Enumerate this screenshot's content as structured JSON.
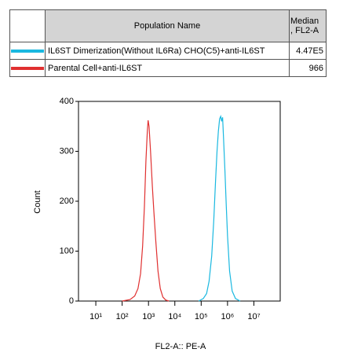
{
  "chart_data": {
    "type": "line",
    "legend_header": [
      "Population Name",
      "Median\n, FL2-A"
    ],
    "xlabel": "FL2-A:: PE-A",
    "ylabel": "Count",
    "xscale": "log",
    "xlim": [
      2.2,
      100000000
    ],
    "ylim": [
      0,
      400
    ],
    "xticks": [
      {
        "value": 10,
        "label": "10¹"
      },
      {
        "value": 100,
        "label": "10²"
      },
      {
        "value": 1000,
        "label": "10³"
      },
      {
        "value": 10000,
        "label": "10⁴"
      },
      {
        "value": 100000,
        "label": "10⁵"
      },
      {
        "value": 1000000,
        "label": "10⁶"
      },
      {
        "value": 10000000,
        "label": "10⁷"
      }
    ],
    "yticks": [
      0,
      100,
      200,
      300,
      400
    ],
    "series": [
      {
        "name": "IL6ST Dimerization(Without IL6Ra) CHO(C5)+anti-IL6ST",
        "color": "#1ab8e0",
        "median": 447000,
        "median_label": "4.47E5",
        "x": [
          80000,
          120000,
          160000,
          200000,
          250000,
          300000,
          350000,
          400000,
          450000,
          500000,
          550000,
          600000,
          650000,
          700000,
          800000,
          900000,
          1000000,
          1200000,
          1500000,
          2000000,
          3000000
        ],
        "values": [
          0,
          5,
          15,
          40,
          90,
          160,
          240,
          300,
          340,
          365,
          370,
          360,
          368,
          330,
          260,
          190,
          130,
          60,
          20,
          5,
          0
        ]
      },
      {
        "name": "Parental Cell+anti-IL6ST",
        "color": "#e03030",
        "median": 966,
        "median_label": "966",
        "x": [
          100,
          200,
          300,
          400,
          500,
          600,
          700,
          800,
          900,
          966,
          1050,
          1200,
          1400,
          1600,
          1900,
          2300,
          2800,
          3500,
          4500,
          6000
        ],
        "values": [
          0,
          3,
          10,
          25,
          55,
          110,
          190,
          280,
          340,
          362,
          350,
          300,
          230,
          180,
          120,
          60,
          25,
          8,
          2,
          0
        ]
      }
    ]
  }
}
